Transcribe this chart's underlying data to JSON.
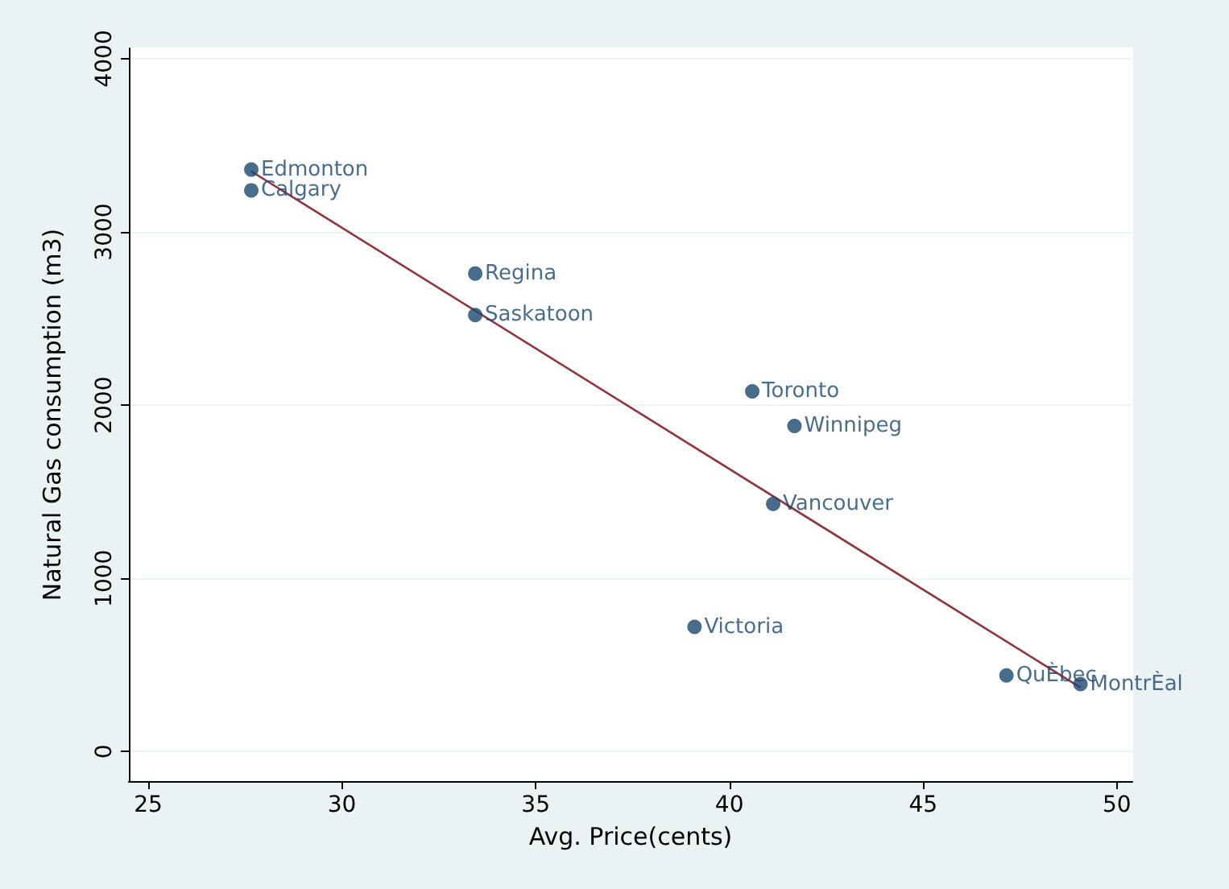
{
  "chart_data": {
    "type": "scatter",
    "xlabel": "Avg. Price(cents)",
    "ylabel": "Natural Gas consumption (m3)",
    "xlim": [
      24.5,
      50.4
    ],
    "ylim": [
      -170,
      4060
    ],
    "xticks": [
      25,
      30,
      35,
      40,
      45,
      50
    ],
    "yticks": [
      0,
      1000,
      2000,
      3000,
      4000
    ],
    "grid": "y",
    "marker": "circle",
    "series": [
      {
        "color": "#1a476f",
        "x": [
          27.66,
          27.66,
          33.44,
          33.44,
          40.59,
          41.68,
          41.13,
          39.1,
          47.15,
          49.06
        ],
        "values": [
          3360,
          3240,
          2760,
          2520,
          2080,
          1880,
          1430,
          720,
          440,
          390
        ]
      },
      {
        "type": "line",
        "color": "#90353b",
        "x": [
          27.66,
          49.06
        ],
        "values": [
          3350,
          370
        ],
        "marker": "none"
      }
    ],
    "annotations": [
      {
        "text": "Edmonton",
        "x": 27.66,
        "y": 3360
      },
      {
        "text": "Calgary",
        "x": 27.66,
        "y": 3240
      },
      {
        "text": "Regina",
        "x": 33.44,
        "y": 2760
      },
      {
        "text": "Saskatoon",
        "x": 33.44,
        "y": 2520
      },
      {
        "text": "Toronto",
        "x": 40.59,
        "y": 2080
      },
      {
        "text": "Winnipeg",
        "x": 41.68,
        "y": 1880
      },
      {
        "text": "Vancouver",
        "x": 41.13,
        "y": 1430
      },
      {
        "text": "Victoria",
        "x": 39.1,
        "y": 720
      },
      {
        "text": "QuÈbec",
        "x": 47.15,
        "y": 440
      },
      {
        "text": "MontrÈal",
        "x": 49.06,
        "y": 390
      }
    ]
  }
}
